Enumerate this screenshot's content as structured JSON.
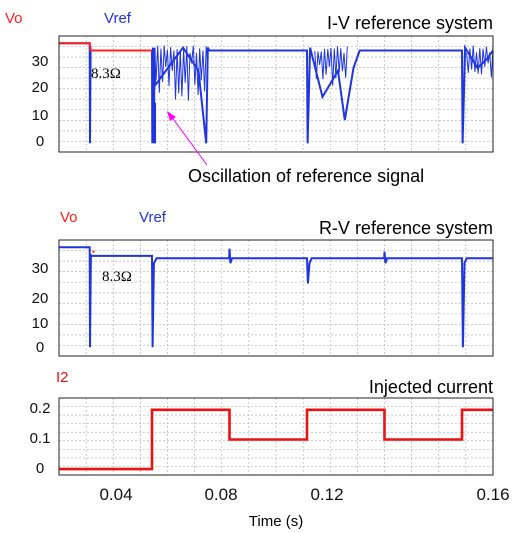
{
  "colors": {
    "vo": "#ff2020",
    "vref": "#1f35e0",
    "i2": "#ee1111",
    "annotation_arrow": "#ff00ff",
    "grid": "#b4b4b4",
    "frame": "#222222",
    "text": "#111111"
  },
  "chart_data": [
    {
      "type": "line",
      "title": "I-V reference system",
      "legend": [
        "Vo",
        "Vref"
      ],
      "xlim": [
        0.02,
        0.16
      ],
      "ylim": [
        -3,
        37
      ],
      "yticks": [
        "30",
        "20",
        "10",
        "0"
      ],
      "grid": true,
      "series": [
        {
          "name": "Vref",
          "x": [
            0.02,
            0.0299,
            0.03,
            0.0302,
            0.0304,
            0.05,
            0.0501,
            0.0503,
            0.0506,
            0.0508,
            0.051,
            0.06,
            0.065,
            0.0675,
            0.068,
            0.0685,
            0.075,
            0.1,
            0.1002,
            0.101,
            0.105,
            0.11,
            0.1122,
            0.115,
            0.117,
            0.125,
            0.13,
            0.15,
            0.1502,
            0.151,
            0.155,
            0.158,
            0.16
          ],
          "y": [
            34.5,
            34.5,
            0,
            32,
            32,
            32,
            0,
            33,
            0,
            33,
            20,
            33,
            25,
            0,
            33,
            32,
            32,
            32,
            0,
            33,
            16,
            25,
            8,
            26,
            32,
            32,
            32,
            32,
            0,
            33,
            26,
            29,
            32
          ]
        },
        {
          "name": "Vo",
          "x": [
            0.02,
            0.0299,
            0.0303,
            0.05
          ],
          "y": [
            34.5,
            34.5,
            32,
            32
          ]
        }
      ],
      "annotations": [
        {
          "text": "8.3Ω",
          "x": 0.031,
          "y": 26
        },
        {
          "text": "Oscillation of reference signal",
          "arrow_to": [
            0.0525,
            11
          ]
        }
      ]
    },
    {
      "type": "line",
      "title": "R-V reference system",
      "legend": [
        "Vo",
        "Vref"
      ],
      "xlim": [
        0.02,
        0.16
      ],
      "ylim": [
        -3,
        37
      ],
      "yticks": [
        "30",
        "20",
        "10",
        "0"
      ],
      "grid": true,
      "series": [
        {
          "name": "Vref",
          "x": [
            0.02,
            0.0299,
            0.03,
            0.0303,
            0.0305,
            0.05,
            0.0502,
            0.0506,
            0.0515,
            0.0749,
            0.075,
            0.0753,
            0.0758,
            0.1,
            0.1003,
            0.1008,
            0.1015,
            0.1249,
            0.125,
            0.1253,
            0.1258,
            0.15,
            0.1503,
            0.1508,
            0.1515,
            0.16
          ],
          "y": [
            34.5,
            34.5,
            0,
            32,
            31.5,
            31.5,
            0,
            29,
            30.7,
            30.7,
            34,
            29,
            30.7,
            30.7,
            22,
            29,
            30.7,
            30.7,
            33,
            29,
            30.7,
            30.7,
            0,
            29,
            30.7,
            30.7
          ]
        },
        {
          "name": "Vo",
          "x": [
            0.0308,
            0.0315
          ],
          "y": [
            33,
            33
          ]
        }
      ],
      "annotations": [
        {
          "text": "8.3Ω",
          "x": 0.032,
          "y": 25
        }
      ]
    },
    {
      "type": "line",
      "title": "Injected current",
      "legend": [
        "I2"
      ],
      "xlabel": "Time (s)",
      "xlim": [
        0.02,
        0.16
      ],
      "ylim": [
        -0.02,
        0.24
      ],
      "xticks": [
        "0.04",
        "0.08",
        "0.12",
        "0.16"
      ],
      "yticks": [
        "0.2",
        "0.1",
        "0"
      ],
      "grid": true,
      "series": [
        {
          "name": "I2",
          "x": [
            0.02,
            0.05,
            0.05,
            0.075,
            0.075,
            0.1,
            0.1,
            0.125,
            0.125,
            0.15,
            0.15,
            0.16
          ],
          "y": [
            0,
            0,
            0.2,
            0.2,
            0.1,
            0.1,
            0.2,
            0.2,
            0.1,
            0.1,
            0.2,
            0.2
          ]
        }
      ]
    }
  ]
}
